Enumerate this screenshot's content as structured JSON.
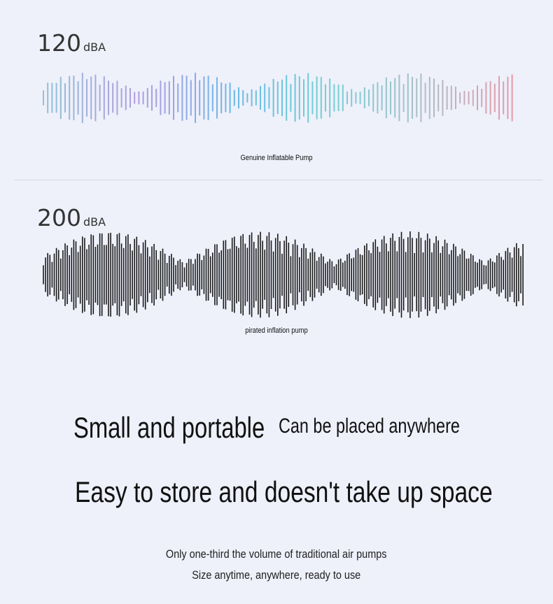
{
  "genuine": {
    "level_value": "120",
    "level_unit": "dBA",
    "caption": "Genuine Inflatable Pump"
  },
  "pirated": {
    "level_value": "200",
    "level_unit": "dBA",
    "caption": "pirated inflation pump"
  },
  "headline": {
    "small": "Small and portable",
    "place": "Can be placed anywhere",
    "store": "Easy to store and doesn't take up space"
  },
  "subtext": {
    "line1": "Only one-third the volume of traditional air pumps",
    "line2": "Size anytime, anywhere, ready to use"
  },
  "colors": {
    "background": "#eef0fa",
    "wave_gradient": [
      "#8fc3d6",
      "#b29be0",
      "#6cb8e6",
      "#6fd0d4",
      "#a9c0c9",
      "#e59aa6"
    ],
    "wave_dark": "#1a1a1a"
  }
}
